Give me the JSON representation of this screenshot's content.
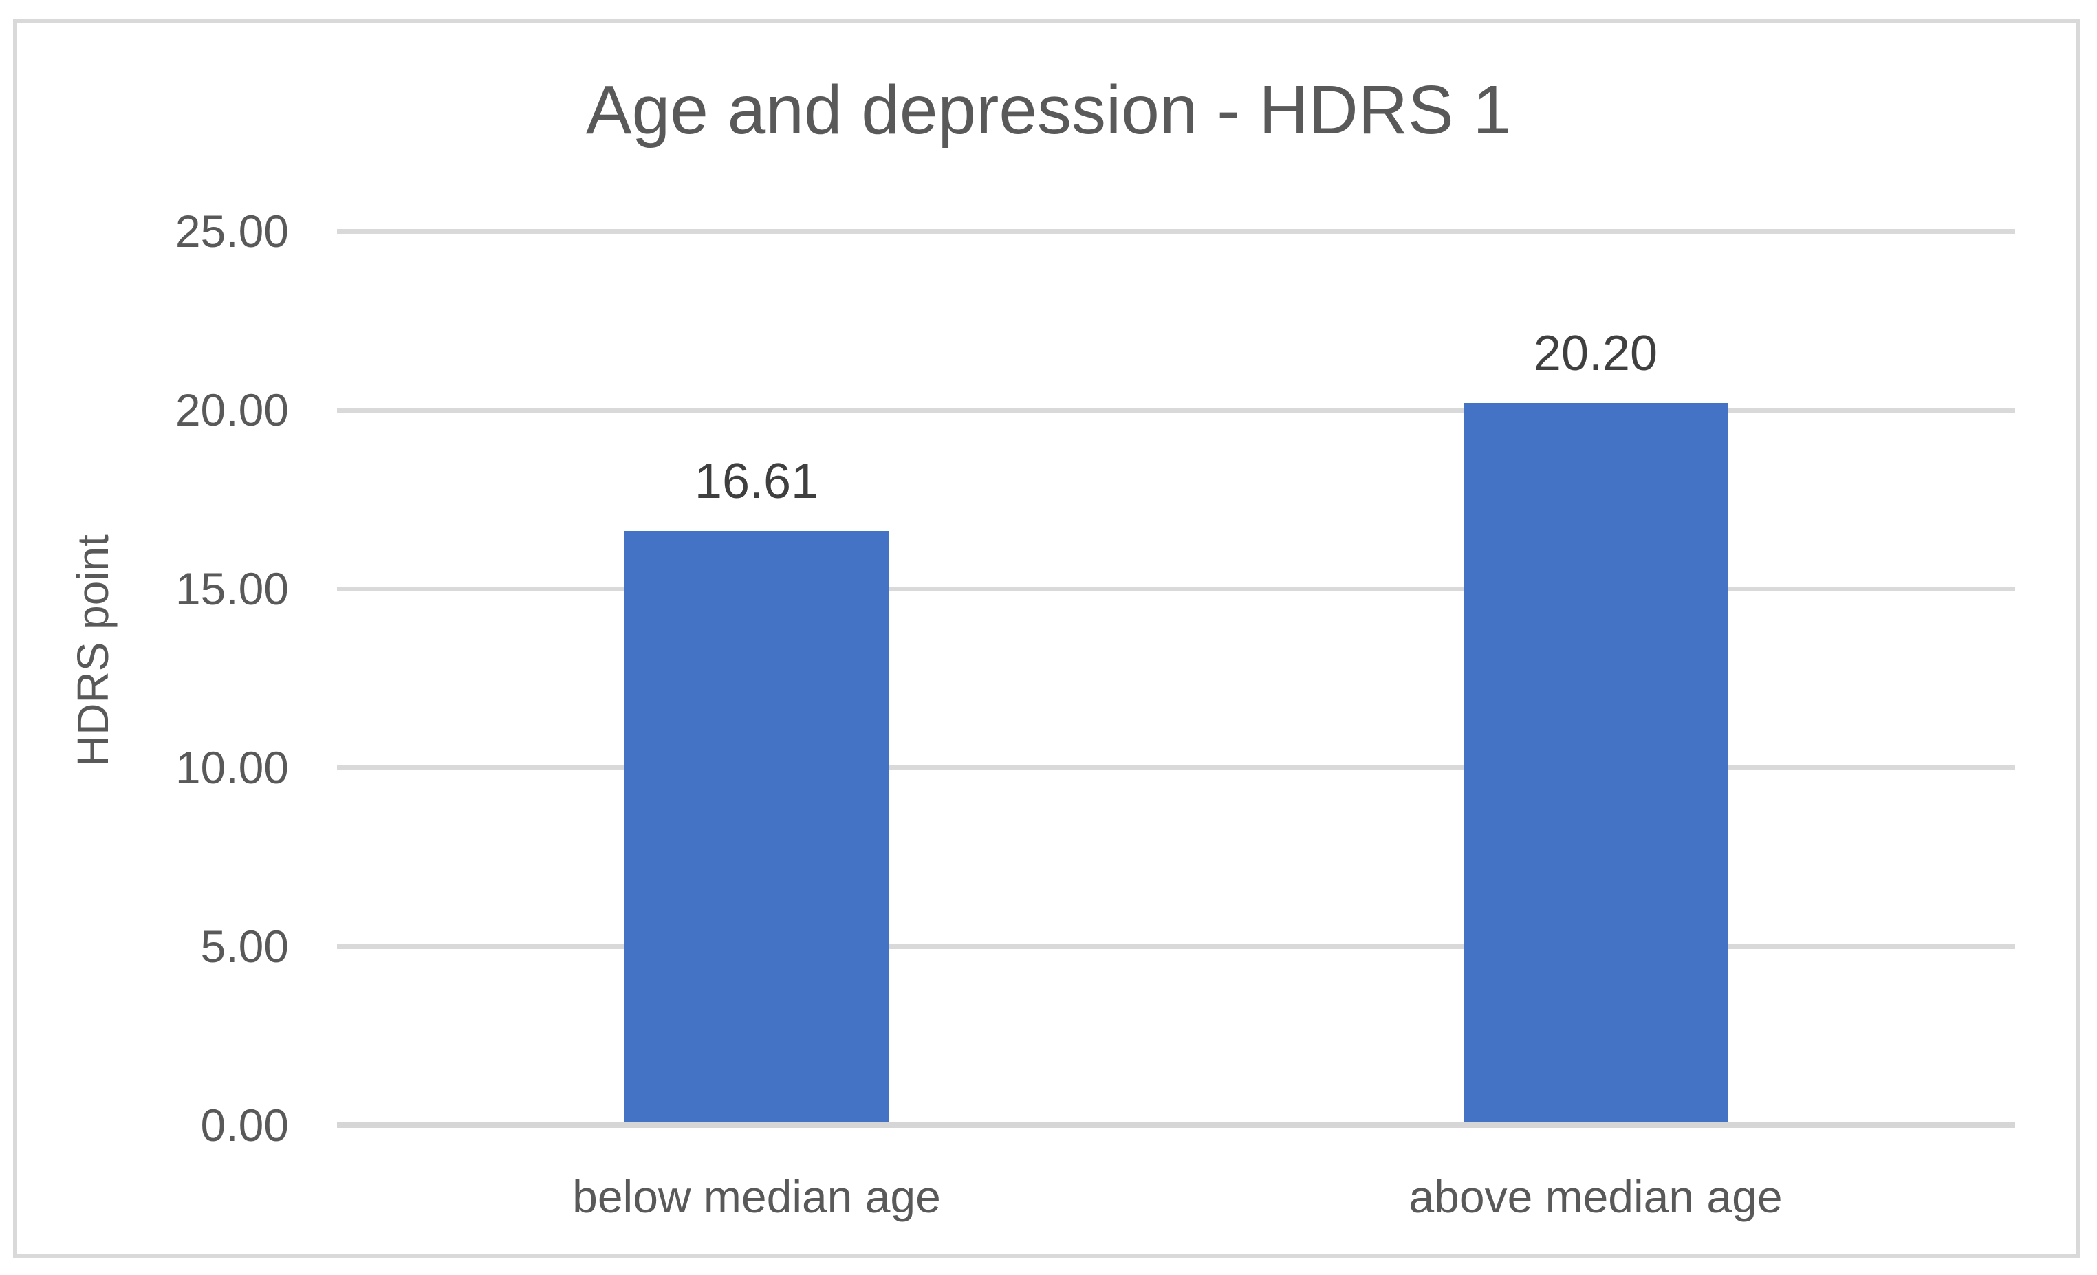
{
  "chart_data": {
    "type": "bar",
    "title": "Age and depression - HDRS 1",
    "ylabel": "HDRS point",
    "xlabel": "",
    "categories": [
      "below median age",
      "above median age"
    ],
    "values": [
      16.61,
      20.2
    ],
    "data_labels": [
      "16.61",
      "20.20"
    ],
    "yticks": [
      "25.00",
      "20.00",
      "15.00",
      "10.00",
      "5.00",
      "0.00"
    ],
    "ylim": [
      0,
      25
    ],
    "ytick_step": 5,
    "grid": true,
    "legend_position": "none",
    "bar_color": "#4472C4",
    "axis_text_color": "#595959",
    "data_label_color": "#3F3F3F",
    "gridline_color": "#D9D9D9",
    "border_color": "#D9D9D9"
  }
}
